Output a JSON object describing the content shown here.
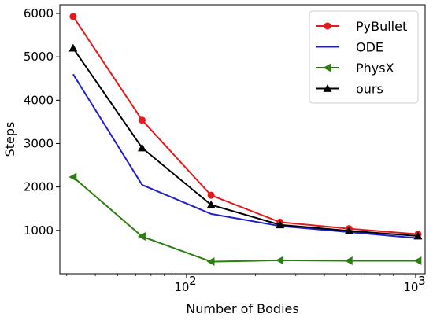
{
  "chart_data": {
    "type": "line",
    "xlabel": "Number of Bodies",
    "ylabel": "Steps",
    "xscale": "log",
    "xlim": [
      28,
      1100
    ],
    "ylim": [
      0,
      6200
    ],
    "grid": false,
    "legend_position": "top-right",
    "xticks": [
      {
        "value": 100,
        "base": "10",
        "exp": "2"
      },
      {
        "value": 1000,
        "base": "10",
        "exp": "3"
      }
    ],
    "yticks": [
      1000,
      2000,
      3000,
      4000,
      5000,
      6000
    ],
    "x": [
      32,
      64,
      128,
      256,
      512,
      1024
    ],
    "series": [
      {
        "name": "PyBullet",
        "color": "#e41a1c",
        "marker": "circle",
        "values": [
          5930,
          3540,
          1810,
          1190,
          1040,
          910
        ]
      },
      {
        "name": "ODE",
        "color": "#1f1fd0",
        "marker": "none",
        "values": [
          4600,
          2050,
          1380,
          1100,
          960,
          820
        ]
      },
      {
        "name": "PhysX",
        "color": "#2e7d12",
        "marker": "triangle-left",
        "values": [
          2230,
          860,
          280,
          310,
          300,
          300
        ]
      },
      {
        "name": "ours",
        "color": "#000000",
        "marker": "triangle-up",
        "values": [
          5200,
          2900,
          1590,
          1130,
          990,
          870
        ]
      }
    ]
  }
}
